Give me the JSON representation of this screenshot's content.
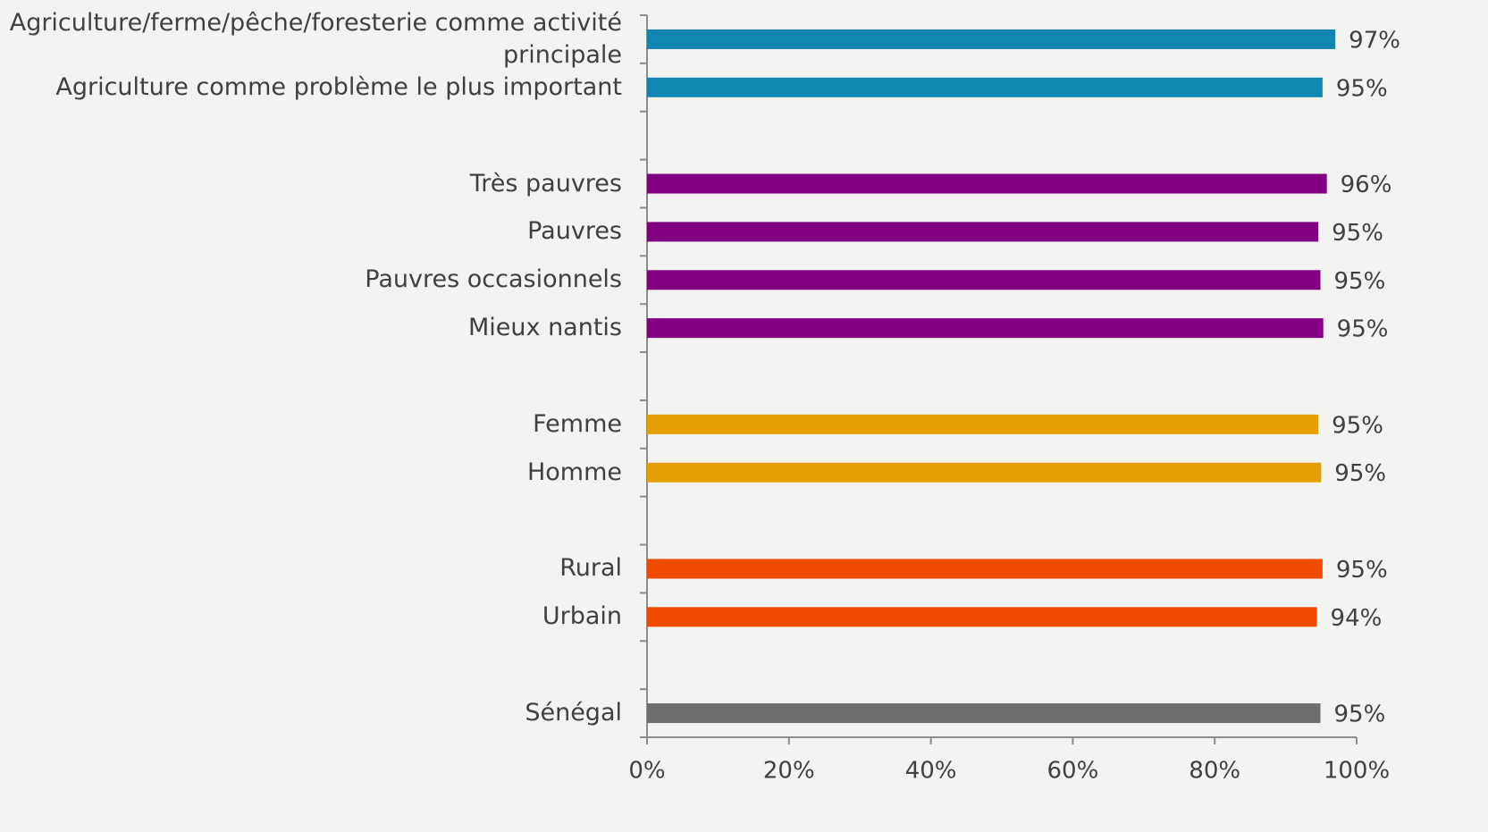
{
  "chart_data": {
    "type": "bar",
    "orientation": "horizontal",
    "categories": [
      "Agriculture/ferme/pêche/foresterie comme activité principale",
      "Agriculture comme problème le plus important",
      null,
      "Très pauvres",
      "Pauvres",
      "Pauvres occasionnels",
      "Mieux nantis",
      null,
      "Femme",
      "Homme",
      null,
      "Rural",
      "Urbain",
      null,
      "Sénégal"
    ],
    "values": [
      97,
      95.2,
      null,
      95.8,
      94.6,
      94.9,
      95.3,
      null,
      94.6,
      95,
      null,
      95.2,
      94.4,
      null,
      94.9
    ],
    "value_labels": [
      "97%",
      "95%",
      null,
      "96%",
      "95%",
      "95%",
      "95%",
      null,
      "95%",
      "95%",
      null,
      "95%",
      "94%",
      null,
      "95%"
    ],
    "colors": [
      "#1186b1",
      "#1186b1",
      null,
      "#800080",
      "#800080",
      "#800080",
      "#800080",
      null,
      "#e59f00",
      "#e59f00",
      null,
      "#f04a00",
      "#f04a00",
      null,
      "#6e6e6e"
    ],
    "xlim": [
      0,
      100
    ],
    "xticks": [
      {
        "value": 0,
        "label": "0%"
      },
      {
        "value": 20,
        "label": "20%"
      },
      {
        "value": 40,
        "label": "40%"
      },
      {
        "value": 60,
        "label": "60%"
      },
      {
        "value": 80,
        "label": "80%"
      },
      {
        "value": 100,
        "label": "100%"
      }
    ]
  }
}
